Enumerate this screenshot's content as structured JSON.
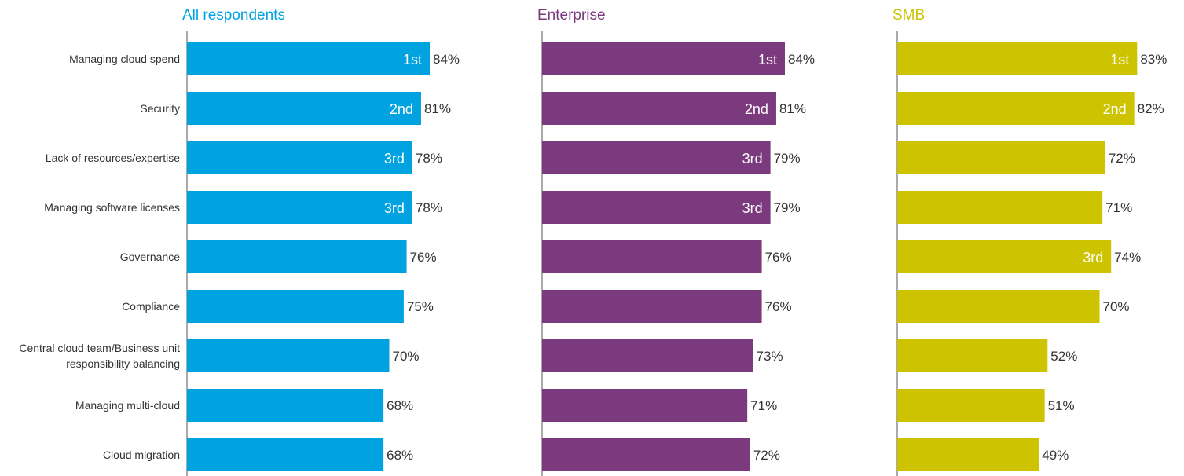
{
  "chart_data": {
    "type": "bar",
    "orientation": "horizontal",
    "categories": [
      "Managing cloud spend",
      "Security",
      "Lack of resources/expertise",
      "Managing software licenses",
      "Governance",
      "Compliance",
      "Central cloud team/Business unit responsibility balancing",
      "Managing multi-cloud",
      "Cloud migration"
    ],
    "category_lines": [
      [
        "Managing cloud spend"
      ],
      [
        "Security"
      ],
      [
        "Lack of resources/expertise"
      ],
      [
        "Managing software licenses"
      ],
      [
        "Governance"
      ],
      [
        "Compliance"
      ],
      [
        "Central cloud team/Business unit",
        "responsibility balancing"
      ],
      [
        "Managing multi-cloud"
      ],
      [
        "Cloud migration"
      ]
    ],
    "value_suffix": "%",
    "grid": false,
    "legend": "none",
    "series": [
      {
        "name": "All respondents",
        "color": "#00a3e0",
        "values": [
          84,
          81,
          78,
          78,
          76,
          75,
          70,
          68,
          68
        ],
        "ranks": [
          "1st",
          "2nd",
          "3rd",
          "3rd",
          "",
          "",
          "",
          "",
          ""
        ]
      },
      {
        "name": "Enterprise",
        "color": "#7b3a7e",
        "values": [
          84,
          81,
          79,
          79,
          76,
          76,
          73,
          71,
          72
        ],
        "ranks": [
          "1st",
          "2nd",
          "3rd",
          "3rd",
          "",
          "",
          "",
          "",
          ""
        ]
      },
      {
        "name": "SMB",
        "color": "#cdc300",
        "values": [
          83,
          82,
          72,
          71,
          74,
          70,
          52,
          51,
          49
        ],
        "ranks": [
          "1st",
          "2nd",
          "",
          "",
          "3rd",
          "",
          "",
          "",
          ""
        ]
      }
    ]
  }
}
